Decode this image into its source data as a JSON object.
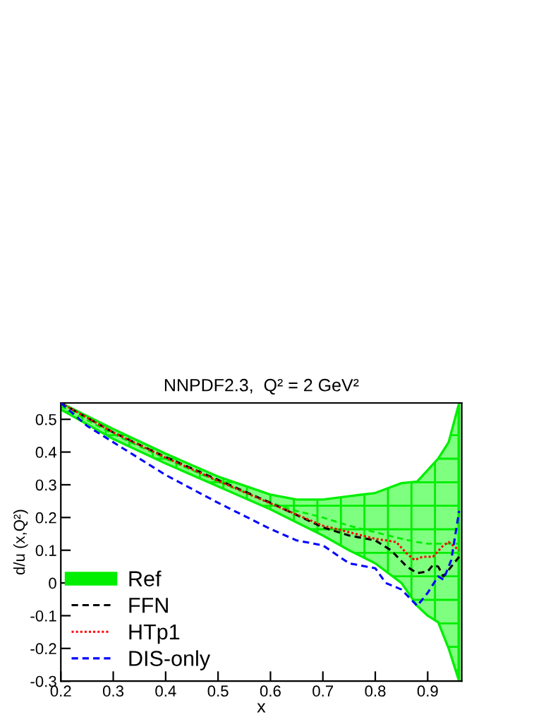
{
  "chart_data": {
    "type": "line",
    "title": "NNPDF2.3,  Q² = 2 GeV²",
    "xlabel": "x",
    "ylabel": "d/u (x,Q²)",
    "xlim": [
      0.2,
      0.965
    ],
    "ylim": [
      -0.3,
      0.55
    ],
    "xticks": [
      0.2,
      0.3,
      0.4,
      0.5,
      0.6,
      0.7,
      0.8,
      0.9
    ],
    "yticks": [
      -0.3,
      -0.2,
      -0.1,
      0,
      0.1,
      0.2,
      0.3,
      0.4,
      0.5
    ],
    "legend": "bottom left",
    "grid": false,
    "series": [
      {
        "name": "Ref",
        "color": "#00ee00",
        "line_style": "dashed",
        "x": [
          0.2,
          0.3,
          0.4,
          0.5,
          0.6,
          0.65,
          0.7,
          0.75,
          0.8,
          0.85,
          0.88,
          0.9,
          0.92,
          0.94,
          0.96
        ],
        "values": [
          0.54,
          0.455,
          0.38,
          0.31,
          0.245,
          0.22,
          0.2,
          0.175,
          0.155,
          0.135,
          0.125,
          0.12,
          0.12,
          0.12,
          0.12
        ],
        "upper": [
          0.55,
          0.47,
          0.395,
          0.325,
          0.27,
          0.255,
          0.255,
          0.265,
          0.275,
          0.305,
          0.31,
          0.345,
          0.38,
          0.43,
          0.55
        ],
        "lower": [
          0.53,
          0.44,
          0.365,
          0.295,
          0.225,
          0.185,
          0.145,
          0.1,
          0.06,
          0.0,
          -0.07,
          -0.1,
          -0.12,
          -0.2,
          -0.3
        ]
      },
      {
        "name": "FFN",
        "color": "#000000",
        "line_style": "dashed",
        "x": [
          0.2,
          0.3,
          0.4,
          0.5,
          0.6,
          0.7,
          0.75,
          0.8,
          0.83,
          0.86,
          0.88,
          0.9,
          0.91,
          0.92,
          0.93,
          0.945,
          0.96
        ],
        "values": [
          0.55,
          0.46,
          0.385,
          0.315,
          0.245,
          0.17,
          0.145,
          0.13,
          0.1,
          0.05,
          0.03,
          0.035,
          0.055,
          0.05,
          0.02,
          0.05,
          0.08
        ]
      },
      {
        "name": "HTp1",
        "color": "#ff0000",
        "line_style": "dotted",
        "x": [
          0.2,
          0.3,
          0.4,
          0.5,
          0.6,
          0.7,
          0.8,
          0.84,
          0.86,
          0.875,
          0.89,
          0.91,
          0.93,
          0.94,
          0.96
        ],
        "values": [
          0.55,
          0.46,
          0.383,
          0.312,
          0.243,
          0.175,
          0.135,
          0.125,
          0.09,
          0.07,
          0.08,
          0.08,
          0.115,
          0.125,
          0.1
        ]
      },
      {
        "name": "DIS-only",
        "color": "#0000ff",
        "line_style": "dashed",
        "x": [
          0.2,
          0.25,
          0.3,
          0.4,
          0.5,
          0.6,
          0.65,
          0.7,
          0.75,
          0.8,
          0.82,
          0.85,
          0.88,
          0.9,
          0.92,
          0.93,
          0.945,
          0.96
        ],
        "values": [
          0.55,
          0.48,
          0.43,
          0.33,
          0.245,
          0.165,
          0.13,
          0.115,
          0.06,
          0.045,
          0.0,
          -0.02,
          -0.07,
          -0.03,
          0.02,
          0.01,
          0.07,
          0.22
        ]
      }
    ]
  }
}
